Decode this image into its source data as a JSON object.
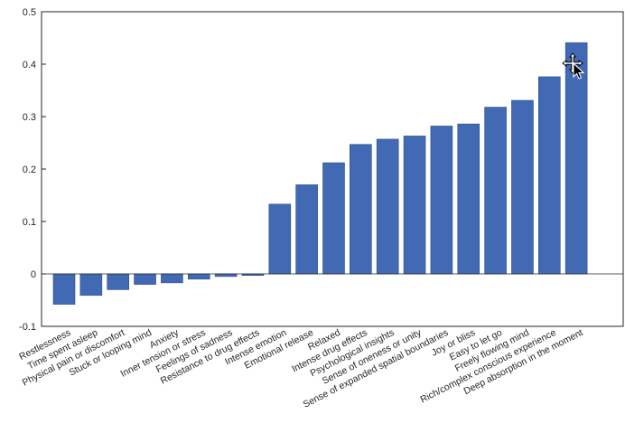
{
  "chart_data": {
    "type": "bar",
    "title": "",
    "xlabel": "",
    "ylabel": "",
    "ylim": [
      -0.1,
      0.5
    ],
    "yticks": [
      -0.1,
      0,
      0.1,
      0.2,
      0.3,
      0.4,
      0.5
    ],
    "ytick_labels": [
      "-0.1",
      "0",
      "0.1",
      "0.2",
      "0.3",
      "0.4",
      "0.5"
    ],
    "grid": false,
    "bar_color": "#4169b4",
    "categories": [
      "Restlessness",
      "Time spent asleep",
      "Physical pain or discomfort",
      "Stuck or looping mind",
      "Anxiety",
      "Inner tension or stress",
      "Feelings of sadness",
      "Resistance to drug effects",
      "Intense emotion",
      "Emotional release",
      "Relaxed",
      "Intense drug effects",
      "Psychological insights",
      "Sense of oneness or unity",
      "Sense of expanded spatial boundaries",
      "Joy or bliss",
      "Easy to let go",
      "Freely flowing mind",
      "Rich/complex conscious experience",
      "Deep absorption in the moment"
    ],
    "values": [
      -0.058,
      -0.041,
      -0.03,
      -0.02,
      -0.017,
      -0.01,
      -0.005,
      -0.003,
      0.133,
      0.17,
      0.212,
      0.247,
      0.257,
      0.263,
      0.282,
      0.286,
      0.318,
      0.331,
      0.376,
      0.441
    ]
  }
}
